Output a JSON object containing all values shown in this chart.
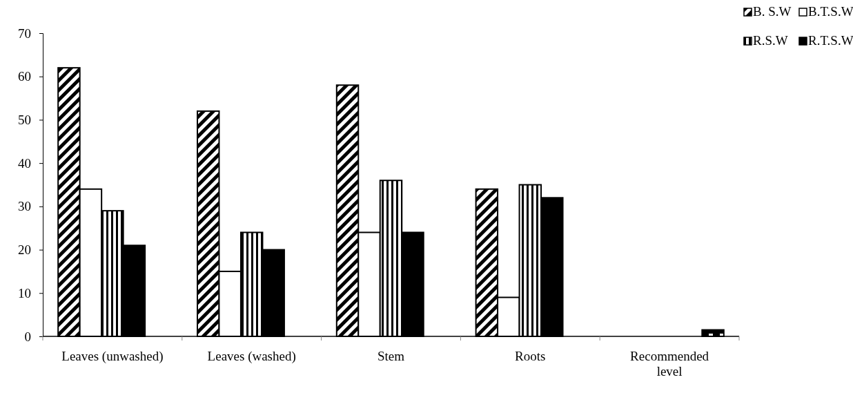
{
  "chart_data": {
    "type": "bar",
    "categories": [
      "Leaves (unwashed)",
      "Leaves (washed)",
      "Stem",
      "Roots",
      "Recommended level"
    ],
    "series": [
      {
        "name": "B. S.W",
        "color": "#000000",
        "values": [
          62,
          52,
          58,
          34,
          null
        ]
      },
      {
        "name": "B.T.S.W",
        "color": "#ffffff",
        "values": [
          34,
          15,
          24,
          9,
          null
        ]
      },
      {
        "name": "R.S.W",
        "color": "#000000",
        "values": [
          29,
          24,
          36,
          35,
          null
        ]
      },
      {
        "name": "R.T.S.W",
        "color": "#000000",
        "values": [
          21,
          20,
          24,
          32,
          null
        ]
      },
      {
        "color": "#000000",
        "values": [
          null,
          null,
          null,
          null,
          1.5
        ]
      }
    ],
    "ylim": [
      0,
      70
    ],
    "yticks": [
      0,
      10,
      20,
      30,
      40,
      50,
      60,
      70
    ],
    "grid": false,
    "legend": "top right"
  }
}
